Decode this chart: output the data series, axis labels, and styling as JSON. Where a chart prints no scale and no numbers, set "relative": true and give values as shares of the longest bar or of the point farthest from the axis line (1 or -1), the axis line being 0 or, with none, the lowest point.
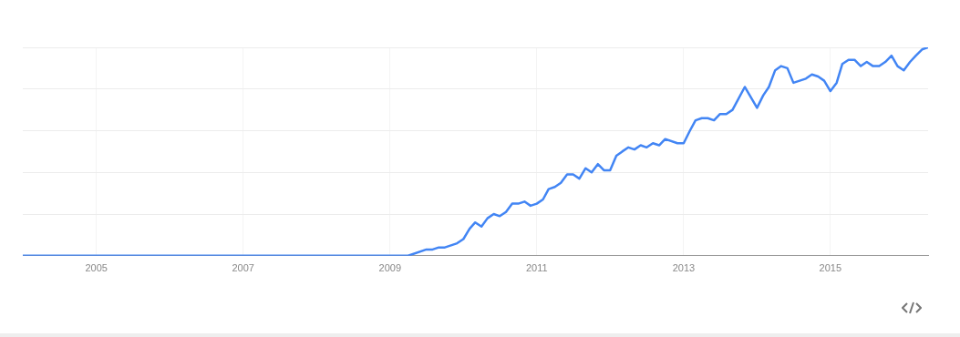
{
  "chart_data": {
    "type": "line",
    "relative": true,
    "legend": false,
    "grid": true,
    "marker": "none",
    "line_style": "solid",
    "xlim": [
      "2004-01",
      "2016-05"
    ],
    "xticks": [
      "2005",
      "2007",
      "2009",
      "2011",
      "2013",
      "2015"
    ],
    "series": [
      {
        "color": "#4285f4",
        "x": [
          "2004-01",
          "2009-04",
          "2009-07",
          "2009-08",
          "2009-09",
          "2009-10",
          "2009-12",
          "2010-01",
          "2010-02",
          "2010-03",
          "2010-04",
          "2010-05",
          "2010-06",
          "2010-07",
          "2010-08",
          "2010-09",
          "2010-10",
          "2010-11",
          "2010-12",
          "2011-01",
          "2011-02",
          "2011-03",
          "2011-04",
          "2011-05",
          "2011-06",
          "2011-07",
          "2011-08",
          "2011-09",
          "2011-10",
          "2011-11",
          "2011-12",
          "2012-01",
          "2012-02",
          "2012-03",
          "2012-04",
          "2012-05",
          "2012-06",
          "2012-07",
          "2012-08",
          "2012-09",
          "2012-10",
          "2012-12",
          "2013-01",
          "2013-02",
          "2013-03",
          "2013-04",
          "2013-05",
          "2013-06",
          "2013-07",
          "2013-08",
          "2013-09",
          "2013-11",
          "2014-01",
          "2014-02",
          "2014-03",
          "2014-04",
          "2014-05",
          "2014-06",
          "2014-07",
          "2014-08",
          "2014-09",
          "2014-10",
          "2014-11",
          "2014-12",
          "2015-01",
          "2015-02",
          "2015-03",
          "2015-04",
          "2015-05",
          "2015-06",
          "2015-07",
          "2015-08",
          "2015-09",
          "2015-10",
          "2015-11",
          "2015-12",
          "2016-01",
          "2016-02",
          "2016-03",
          "2016-04",
          "2016-05"
        ],
        "values": [
          0,
          0,
          0.03,
          0.03,
          0.04,
          0.04,
          0.06,
          0.08,
          0.13,
          0.16,
          0.14,
          0.18,
          0.2,
          0.19,
          0.21,
          0.25,
          0.25,
          0.26,
          0.24,
          0.25,
          0.27,
          0.32,
          0.33,
          0.35,
          0.39,
          0.39,
          0.37,
          0.42,
          0.4,
          0.44,
          0.41,
          0.41,
          0.48,
          0.5,
          0.52,
          0.51,
          0.53,
          0.52,
          0.54,
          0.53,
          0.56,
          0.54,
          0.54,
          0.6,
          0.65,
          0.66,
          0.66,
          0.65,
          0.68,
          0.68,
          0.7,
          0.81,
          0.71,
          0.77,
          0.81,
          0.89,
          0.91,
          0.9,
          0.83,
          0.84,
          0.85,
          0.87,
          0.86,
          0.84,
          0.79,
          0.83,
          0.92,
          0.94,
          0.94,
          0.91,
          0.93,
          0.91,
          0.91,
          0.93,
          0.96,
          0.91,
          0.89,
          0.93,
          0.96,
          0.99,
          1
        ]
      }
    ]
  }
}
